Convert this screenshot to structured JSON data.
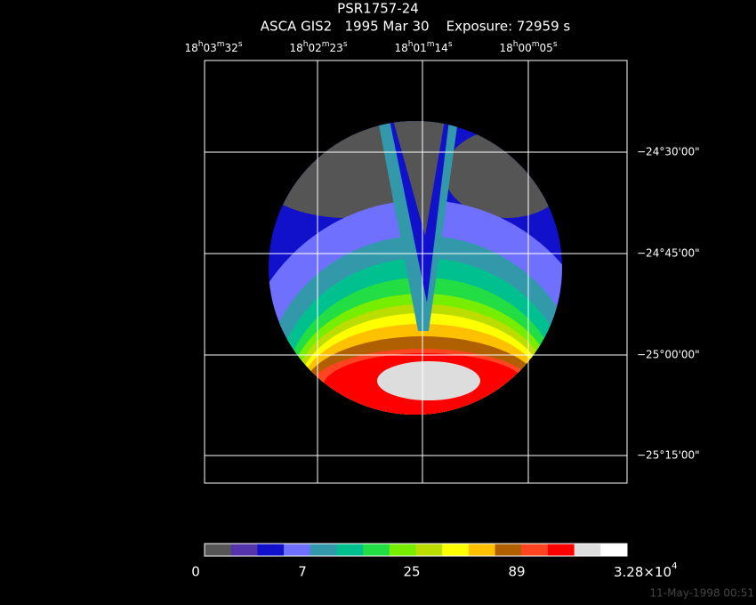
{
  "header": {
    "title": "PSR1757-24",
    "subtitle": "ASCA GIS2   1995 Mar 30    Exposure: 72959 s"
  },
  "ra_labels": [
    "18h03m32s",
    "18h02m23s",
    "18h01m14s",
    "18h00m05s"
  ],
  "dec_labels": [
    "−24°30'00\"",
    "−24°45'00\"",
    "−25°00'00\"",
    "−25°15'00\""
  ],
  "colorbar": {
    "colors": [
      "#555555",
      "#5533aa",
      "#1111cc",
      "#7070ff",
      "#3399aa",
      "#00c090",
      "#22dd44",
      "#77ee00",
      "#bbdd00",
      "#ffff00",
      "#ffc000",
      "#b06000",
      "#ff4422",
      "#ff0000",
      "#dddddd",
      "#ffffff"
    ],
    "labels": [
      "0",
      "7",
      "25",
      "89"
    ],
    "max_label": {
      "mantissa": "3.28×10",
      "exponent": "4"
    }
  },
  "footer": {
    "timestamp": "11-May-1998 00:51"
  }
}
